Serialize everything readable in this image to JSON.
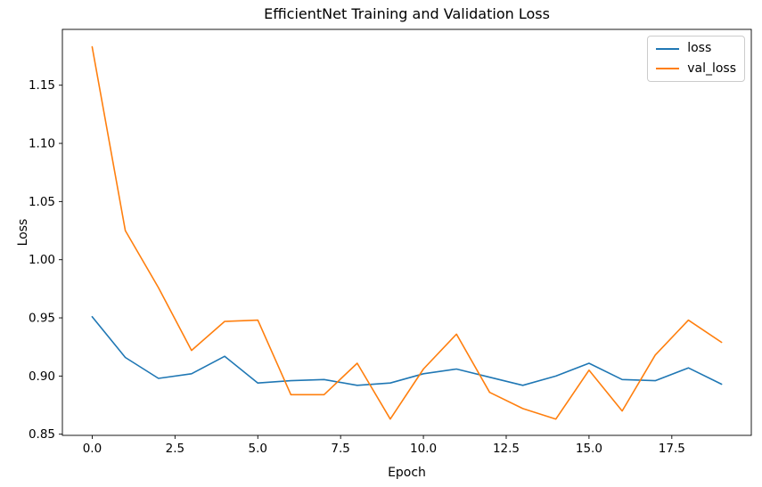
{
  "figure": {
    "background": "#ffffff",
    "title": "EfficientNet Training and Validation Loss",
    "xlabel": "Epoch",
    "ylabel": "Loss"
  },
  "legend": {
    "position": "upper right",
    "items": [
      {
        "label": "loss",
        "color": "#1f77b4"
      },
      {
        "label": "val_loss",
        "color": "#ff7f0e"
      }
    ]
  },
  "chart_data": {
    "type": "line",
    "title": "EfficientNet Training and Validation Loss",
    "xlabel": "Epoch",
    "ylabel": "Loss",
    "grid": false,
    "legend_position": "upper right",
    "x": [
      0,
      1,
      2,
      3,
      4,
      5,
      6,
      7,
      8,
      9,
      10,
      11,
      12,
      13,
      14,
      15,
      16,
      17,
      18,
      19
    ],
    "series": [
      {
        "name": "loss",
        "color": "#1f77b4",
        "values": [
          0.951,
          0.916,
          0.898,
          0.902,
          0.917,
          0.894,
          0.896,
          0.897,
          0.892,
          0.894,
          0.902,
          0.906,
          0.899,
          0.892,
          0.9,
          0.911,
          0.897,
          0.896,
          0.907,
          0.893
        ]
      },
      {
        "name": "val_loss",
        "color": "#ff7f0e",
        "values": [
          1.183,
          1.025,
          0.976,
          0.922,
          0.947,
          0.948,
          0.884,
          0.884,
          0.911,
          0.863,
          0.906,
          0.936,
          0.886,
          0.872,
          0.863,
          0.905,
          0.87,
          0.918,
          0.948,
          0.929
        ]
      }
    ],
    "xlim": [
      -0.9,
      19.9
    ],
    "ylim": [
      0.849,
      1.198
    ],
    "xticks": [
      0,
      2.5,
      5,
      7.5,
      10,
      12.5,
      15,
      17.5
    ],
    "xtick_labels": [
      "0.0",
      "2.5",
      "5.0",
      "7.5",
      "10.0",
      "12.5",
      "15.0",
      "17.5"
    ],
    "yticks": [
      0.85,
      0.9,
      0.95,
      1.0,
      1.05,
      1.1,
      1.15
    ],
    "ytick_labels": [
      "0.85",
      "0.90",
      "0.95",
      "1.00",
      "1.05",
      "1.10",
      "1.15"
    ]
  }
}
